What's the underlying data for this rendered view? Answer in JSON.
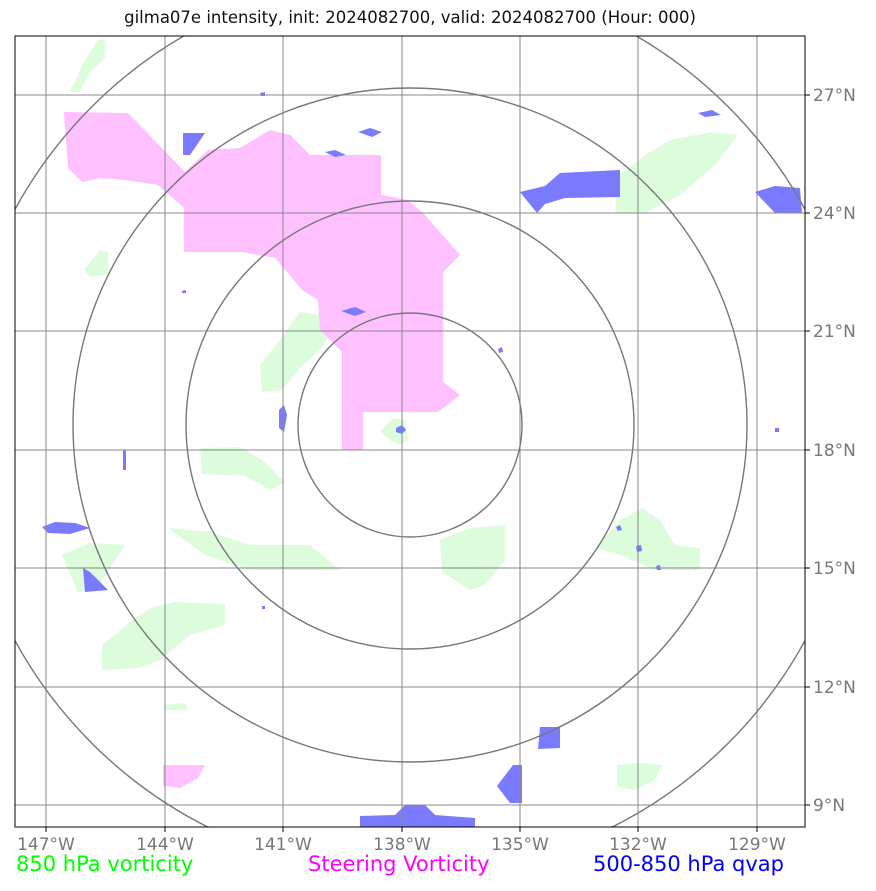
{
  "title": "gilma07e intensity, init: 2024082700, valid: 2024082700 (Hour: 000)",
  "legend": [
    {
      "label": "850 hPa vorticity",
      "color": "#00ff00"
    },
    {
      "label": "Steering Vorticity",
      "color": "#ff00ff"
    },
    {
      "label": "500-850 hPa qvap",
      "color": "#0000ff"
    }
  ],
  "map": {
    "lon_labels": [
      "147°W",
      "144°W",
      "141°W",
      "138°W",
      "135°W",
      "132°W",
      "129°W"
    ],
    "lat_labels": [
      "27°N",
      "24°N",
      "21°N",
      "18°N",
      "15°N",
      "12°N",
      "9°N"
    ],
    "colors": {
      "vorticity_fill": "#dcfcdc",
      "steering_fill": "#ffc0ff",
      "qvap_fill": "#7a7aff",
      "grid": "#888888",
      "range_rings": "#777777",
      "frame": "#000000",
      "tick_text": "#777777"
    }
  }
}
